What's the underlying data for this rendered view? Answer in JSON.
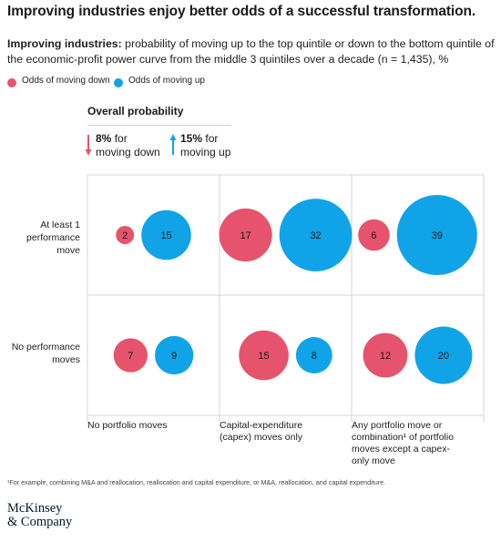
{
  "title": "Improving industries enjoy better odds of a successful transformation.",
  "subtitle_bold": "Improving industries:",
  "subtitle_rest": " probability of moving up to the top quintile or down to the bottom quintile of the economic-profit power curve from the middle 3 quintiles over a decade (n = 1,435), %",
  "legend": [
    {
      "label": "Odds of moving down",
      "color": "#e5546c"
    },
    {
      "label": "Odds of moving up",
      "color": "#11a3e8"
    }
  ],
  "overall": {
    "title": "Overall probability",
    "down": {
      "value": "8%",
      "line1": "for",
      "line2": "moving down"
    },
    "up": {
      "value": "15%",
      "line1": "for",
      "line2": "moving up"
    }
  },
  "chart_data": {
    "type": "bubble-grid",
    "title": "Overall probability",
    "unit": "%",
    "rows": [
      "At least 1 performance move",
      "No performance moves"
    ],
    "columns": [
      "No portfolio moves",
      "Capital-expenditure (capex) moves only",
      "Any portfolio move or combination¹ of portfolio moves except a capex-only move"
    ],
    "series": [
      {
        "name": "Odds of moving down",
        "color": "#e5546c",
        "values": [
          [
            2,
            17,
            6
          ],
          [
            7,
            15,
            12
          ]
        ]
      },
      {
        "name": "Odds of moving up",
        "color": "#11a3e8",
        "values": [
          [
            15,
            32,
            39
          ],
          [
            9,
            8,
            20
          ]
        ]
      }
    ],
    "grid": true,
    "legend_position": "top-left"
  },
  "row_labels": [
    [
      "At least 1",
      "performance",
      "move"
    ],
    [
      "No performance",
      "moves"
    ]
  ],
  "col_labels": [
    [
      "No portfolio moves"
    ],
    [
      "Capital-expenditure",
      "(capex) moves only"
    ],
    [
      "Any portfolio move or",
      "combination¹ of portfolio",
      "moves except a capex-",
      "only move"
    ]
  ],
  "footnote": "¹For example, combining M&A and reallocation, reallocation and capital expenditure, or M&A, reallocation, and capital expenditure.",
  "logo": {
    "line1": "McKinsey",
    "line2": "& Company"
  }
}
